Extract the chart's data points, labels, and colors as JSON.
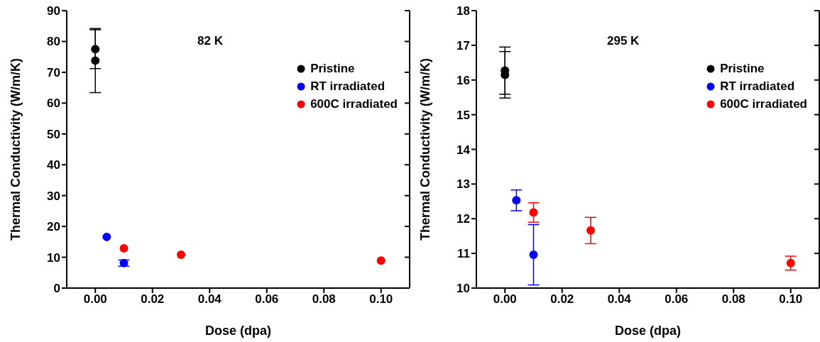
{
  "chart_data": [
    {
      "type": "scatter",
      "xlabel": "Dose (dpa)",
      "ylabel": "Thermal Conductivity (W/m/K)",
      "annotations": [
        "82 K"
      ],
      "xlim": [
        -0.01,
        0.11
      ],
      "xticks": [
        {
          "value": 0,
          "label": "0.00"
        },
        {
          "value": 0.02,
          "label": "0.02"
        },
        {
          "value": 0.04,
          "label": "0.04"
        },
        {
          "value": 0.06,
          "label": "0.06"
        },
        {
          "value": 0.08,
          "label": "0.08"
        },
        {
          "value": 0.1,
          "label": "0.10"
        }
      ],
      "ylim": [
        0,
        90
      ],
      "yticks": [
        0,
        10,
        20,
        30,
        40,
        50,
        60,
        70,
        80,
        90
      ],
      "grid": false,
      "legend": "top right",
      "marker": "circle",
      "series": [
        {
          "name": "Pristine",
          "color": "#000000",
          "x": [
            0,
            0
          ],
          "values": [
            77.5,
            73.8
          ],
          "errors": [
            6.3,
            10.4
          ]
        },
        {
          "name": "RT irradiated",
          "color": "#0000ff",
          "x": [
            0.004,
            0.01
          ],
          "values": [
            16.6,
            8.1
          ],
          "errors": [
            null,
            1
          ]
        },
        {
          "name": "600C irradiated",
          "color": "#ff0000",
          "x": [
            0.01,
            0.03,
            0.1
          ],
          "values": [
            12.9,
            10.8,
            8.9
          ],
          "errors": [
            null,
            null,
            null
          ]
        }
      ]
    },
    {
      "type": "scatter",
      "xlabel": "Dose (dpa)",
      "ylabel": "Thermal Conductivity (W/m/K)",
      "annotations": [
        "295 K"
      ],
      "xlim": [
        -0.01,
        0.11
      ],
      "xticks": [
        {
          "value": 0,
          "label": "0.00"
        },
        {
          "value": 0.02,
          "label": "0.02"
        },
        {
          "value": 0.04,
          "label": "0.04"
        },
        {
          "value": 0.06,
          "label": "0.06"
        },
        {
          "value": 0.08,
          "label": "0.08"
        },
        {
          "value": 0.1,
          "label": "0.10"
        }
      ],
      "ylim": [
        10,
        18
      ],
      "yticks": [
        10,
        11,
        12,
        13,
        14,
        15,
        16,
        17,
        18
      ],
      "grid": false,
      "legend": "top right",
      "marker": "circle",
      "series": [
        {
          "name": "Pristine",
          "color": "#000000",
          "x": [
            0,
            0
          ],
          "values": [
            16.27,
            16.15
          ],
          "errors": [
            0.68,
            0.67
          ]
        },
        {
          "name": "RT irradiated",
          "color": "#0000ff",
          "x": [
            0.004,
            0.01
          ],
          "values": [
            12.53,
            10.96
          ],
          "errors": [
            0.3,
            0.87
          ]
        },
        {
          "name": "600C irradiated",
          "color": "#ff0000",
          "x": [
            0.01,
            0.03,
            0.1
          ],
          "values": [
            12.18,
            11.66,
            10.72
          ],
          "errors": [
            0.28,
            0.38,
            0.2
          ]
        }
      ]
    }
  ]
}
